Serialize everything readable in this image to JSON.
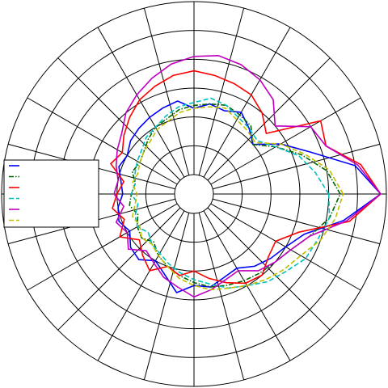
{
  "chart_data": {
    "type": "polar",
    "x": [
      0,
      10,
      20,
      30,
      40,
      50,
      60,
      70,
      80,
      90,
      100,
      110,
      120,
      130,
      140,
      150,
      160,
      170,
      180,
      190,
      200,
      210,
      220,
      230,
      240,
      250,
      260,
      270,
      280,
      290,
      300,
      310,
      320,
      330,
      340,
      350
    ],
    "series": [
      {
        "color": "#0000ff",
        "linestyle": "solid",
        "values": [
          5.8,
          5.0,
          3.6,
          2.8,
          2.0,
          2.3,
          2.6,
          2.4,
          2.5,
          2.3,
          2.6,
          2.5,
          2.4,
          2.3,
          2.2,
          2.0,
          2.1,
          1.9,
          1.8,
          2.0,
          2.1,
          1.9,
          2.2,
          2.3,
          2.0,
          2.3,
          2.8,
          2.5,
          2.6,
          2.4,
          2.3,
          2.6,
          2.8,
          3.0,
          3.4,
          4.6
        ]
      },
      {
        "color": "#006400",
        "linestyle": "dashdot",
        "values": [
          4.4,
          4.0,
          3.3,
          2.6,
          2.0,
          2.4,
          2.5,
          2.6,
          2.5,
          2.4,
          2.3,
          2.1,
          2.0,
          1.8,
          1.6,
          1.5,
          1.6,
          1.4,
          1.5,
          1.6,
          1.4,
          1.6,
          1.7,
          1.5,
          1.8,
          2.0,
          2.2,
          2.4,
          2.6,
          2.7,
          2.8,
          2.9,
          3.0,
          3.2,
          3.6,
          4.1
        ]
      },
      {
        "color": "#ff0000",
        "linestyle": "solid",
        "values": [
          5.8,
          5.2,
          4.2,
          4.4,
          2.6,
          3.0,
          3.3,
          3.4,
          3.5,
          3.6,
          3.5,
          3.3,
          3.1,
          2.8,
          2.5,
          2.2,
          2.4,
          1.8,
          2.0,
          2.2,
          1.9,
          2.3,
          1.8,
          2.1,
          2.4,
          2.0,
          2.2,
          2.0,
          2.3,
          2.6,
          2.9,
          3.0,
          2.7,
          2.6,
          3.2,
          4.8
        ]
      },
      {
        "color": "#00bfbf",
        "linestyle": "dashed",
        "values": [
          4.0,
          3.6,
          3.2,
          2.6,
          2.2,
          2.3,
          2.4,
          2.6,
          2.7,
          2.5,
          2.4,
          2.2,
          2.0,
          1.9,
          1.7,
          1.6,
          1.5,
          1.4,
          1.5,
          1.3,
          1.5,
          1.6,
          1.4,
          1.6,
          1.7,
          1.9,
          2.1,
          2.3,
          2.5,
          2.8,
          3.0,
          3.3,
          3.5,
          3.8,
          3.9,
          4.1
        ]
      },
      {
        "color": "#bf00bf",
        "linestyle": "solid",
        "values": [
          5.8,
          5.1,
          4.2,
          4.0,
          3.0,
          3.6,
          3.9,
          4.1,
          4.2,
          4.1,
          3.9,
          3.6,
          3.3,
          3.0,
          2.6,
          2.4,
          2.2,
          2.0,
          2.1,
          1.8,
          2.2,
          2.0,
          2.3,
          1.9,
          2.1,
          2.4,
          2.6,
          2.9,
          2.7,
          2.5,
          2.4,
          2.8,
          3.0,
          3.2,
          3.6,
          4.7
        ]
      },
      {
        "color": "#bfbf00",
        "linestyle": "dashed",
        "values": [
          4.5,
          4.1,
          3.4,
          2.8,
          2.1,
          2.2,
          2.3,
          2.5,
          2.4,
          2.3,
          2.2,
          2.0,
          1.9,
          1.7,
          1.6,
          1.5,
          1.4,
          1.5,
          1.3,
          1.4,
          1.6,
          1.5,
          1.7,
          1.6,
          1.8,
          2.0,
          2.3,
          2.5,
          2.7,
          2.8,
          3.0,
          3.2,
          3.4,
          3.6,
          4.0,
          4.3
        ]
      }
    ],
    "ylim": [
      0,
      6
    ],
    "yticks": [
      0,
      1,
      2,
      3,
      4,
      5,
      6
    ],
    "xticks": [
      0,
      15,
      30,
      45,
      60,
      75,
      90,
      105,
      120,
      135,
      150,
      165,
      180,
      195,
      210,
      225,
      240,
      255,
      270,
      285,
      300,
      315,
      330,
      345
    ],
    "grid": true,
    "legend": "left"
  }
}
